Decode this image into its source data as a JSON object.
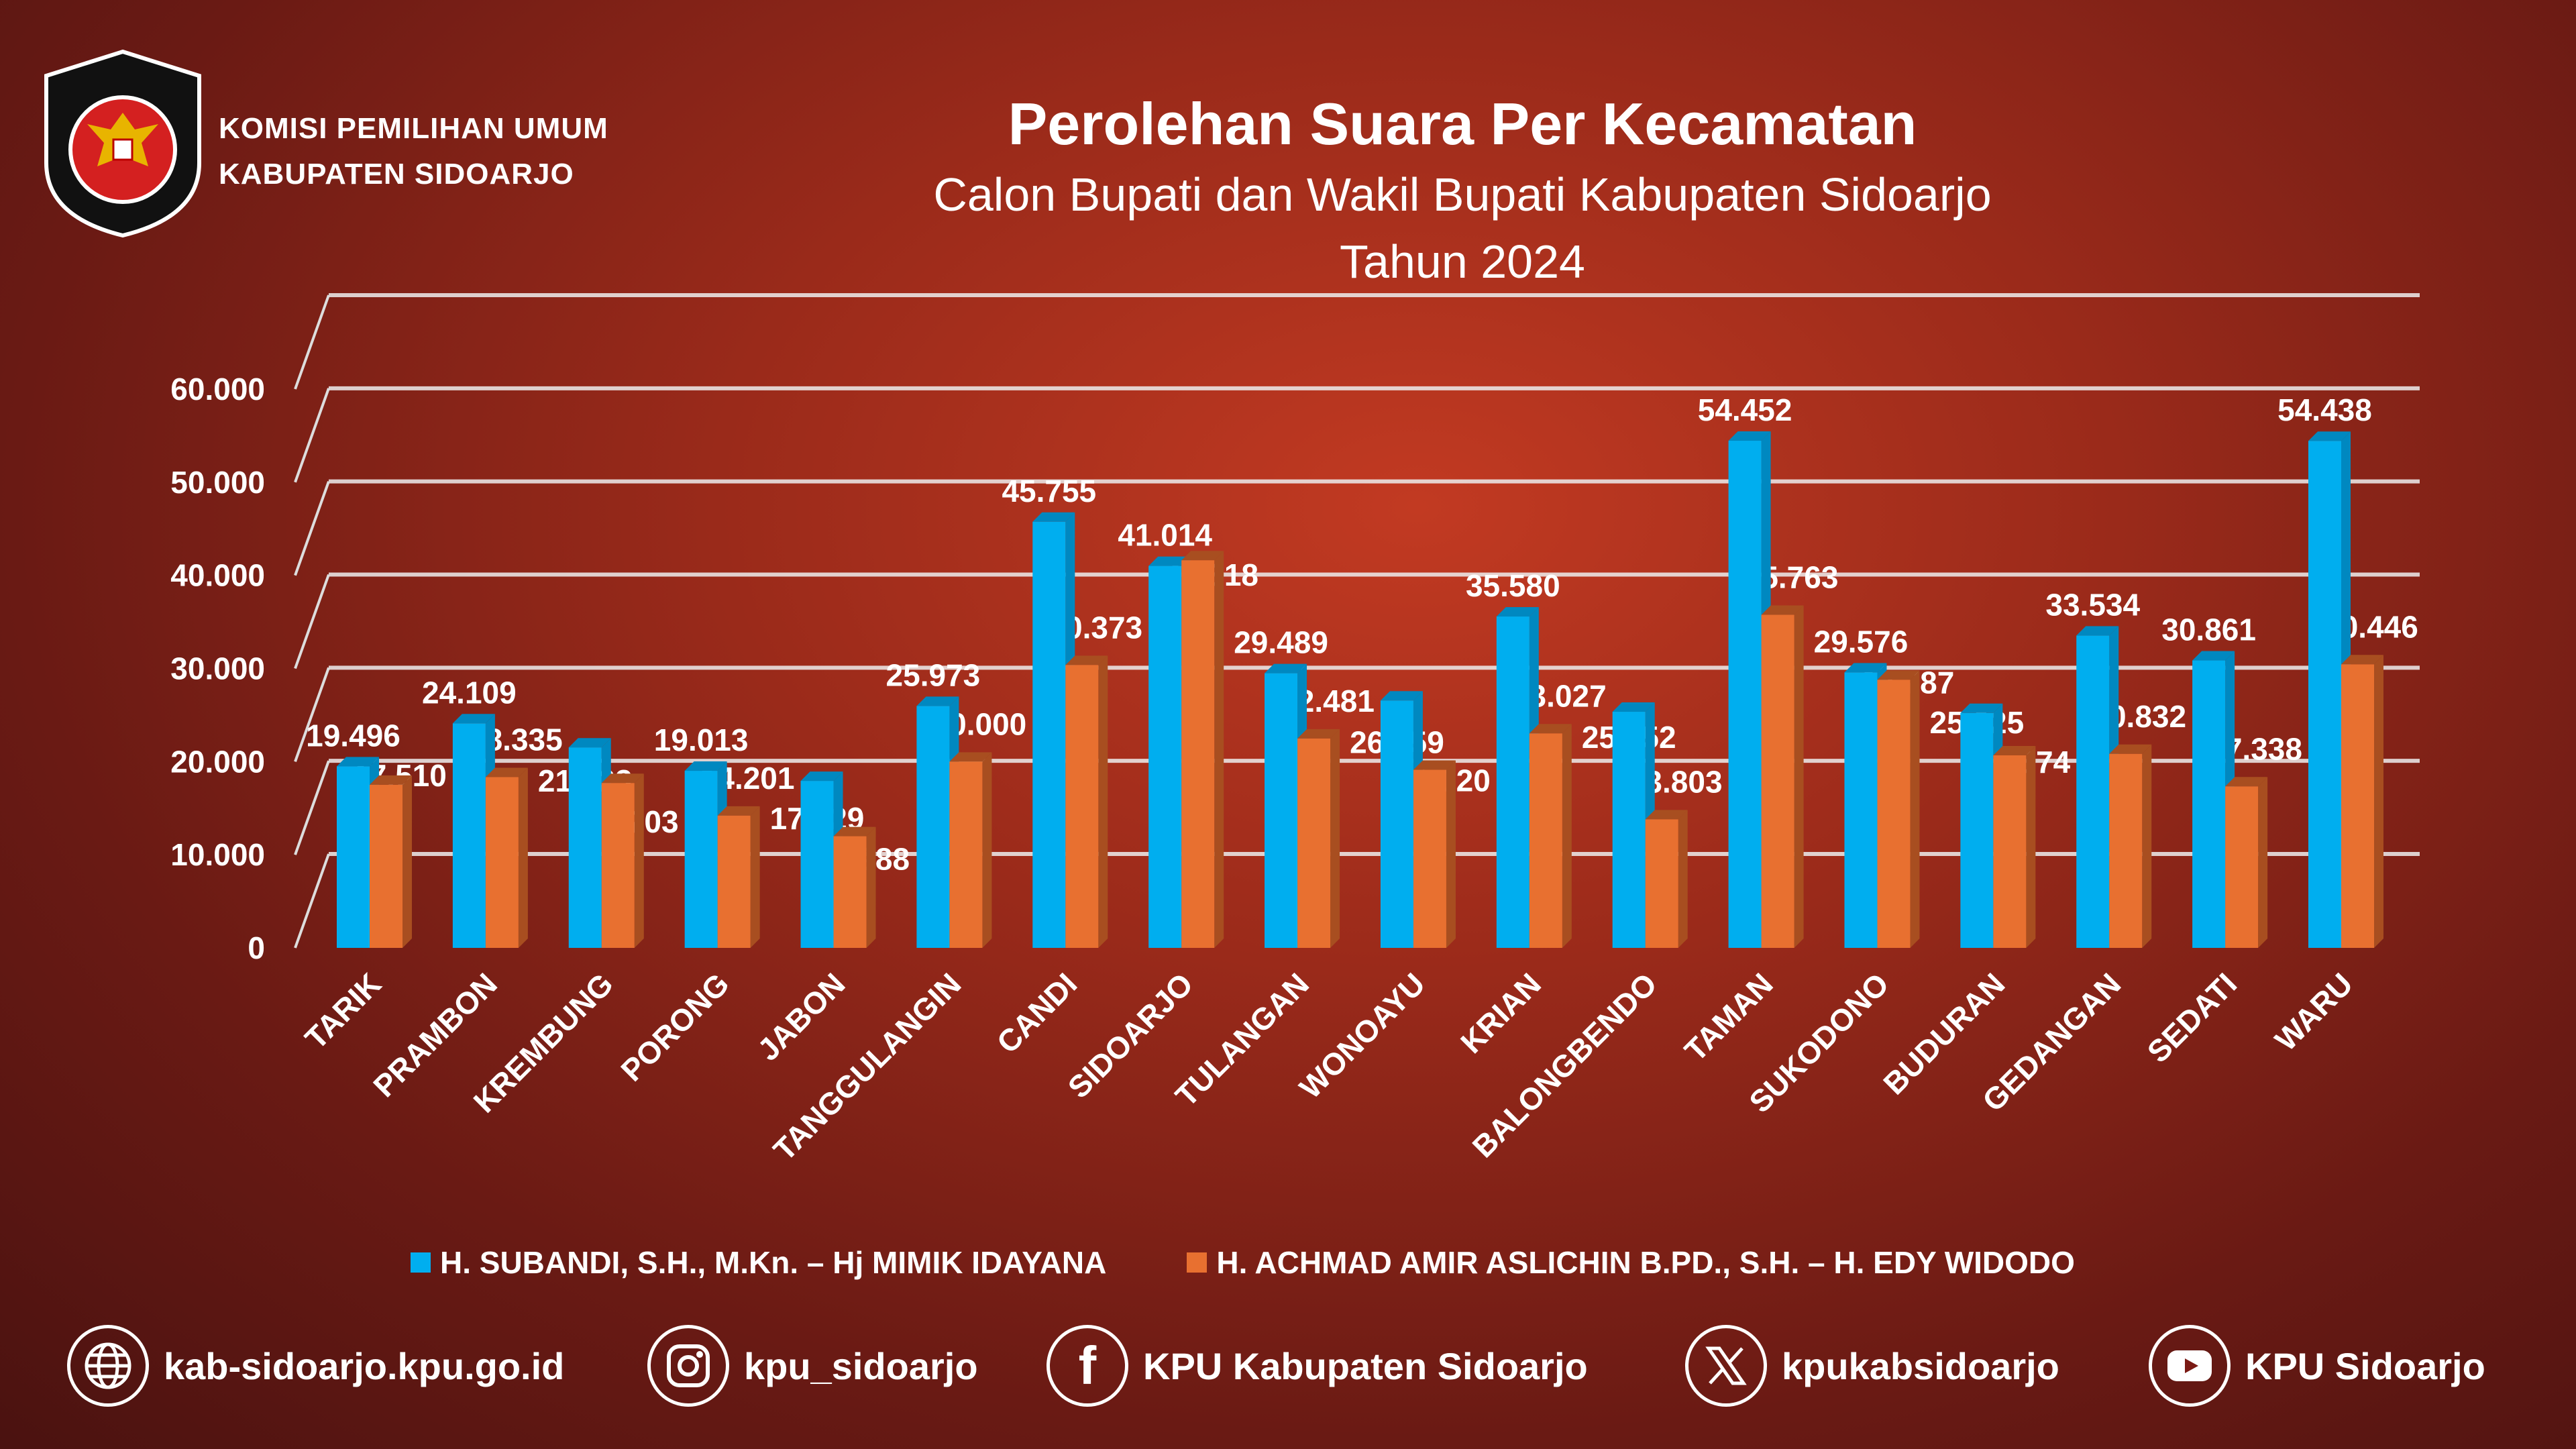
{
  "header": {
    "logo_text_top": "KOMISI",
    "logo_text_bottom": "PEMILIHAN UMUM",
    "org_line1": "KOMISI PEMILIHAN UMUM",
    "org_line2": "KABUPATEN SIDOARJO"
  },
  "chart_data": {
    "type": "bar",
    "title": "Perolehan Suara Per Kecamatan",
    "subtitle": "Calon Bupati dan Wakil Bupati Kabupaten Sidoarjo",
    "subtitle2": "Tahun 2024",
    "xlabel": "",
    "ylabel": "",
    "ylim": [
      0,
      60000
    ],
    "yticks": [
      0,
      10000,
      20000,
      30000,
      40000,
      50000,
      60000
    ],
    "ytick_labels": [
      "0",
      "10.000",
      "20.000",
      "30.000",
      "40.000",
      "50.000",
      "60.000"
    ],
    "grid": true,
    "legend_position": "bottom",
    "categories": [
      "TARIK",
      "PRAMBON",
      "KREMBUNG",
      "PORONG",
      "JABON",
      "TANGGULANGIN",
      "CANDI",
      "SIDOARJO",
      "TULANGAN",
      "WONOAYU",
      "KRIAN",
      "BALONGBENDO",
      "TAMAN",
      "SUKODONO",
      "BUDURAN",
      "GEDANGAN",
      "SEDATI",
      "WARU"
    ],
    "series": [
      {
        "name": "H. SUBANDI, S.H., M.Kn. – Hj MIMIK IDAYANA",
        "color": "#00aeef",
        "values": [
          19496,
          24109,
          21523,
          19013,
          17929,
          25973,
          45755,
          41014,
          29489,
          26559,
          35580,
          25352,
          54452,
          29576,
          25225,
          33534,
          30861,
          54438
        ],
        "labels": [
          "19.496",
          "24.109",
          "21.523",
          "19.013",
          "17.929",
          "25.973",
          "45.755",
          "41.014",
          "29.489",
          "26.559",
          "35.580",
          "25.352",
          "54.452",
          "29.576",
          "25.225",
          "33.534",
          "30.861",
          "54.438"
        ]
      },
      {
        "name": "H. ACHMAD AMIR ASLICHIN B.PD., S.H. – H. EDY WIDODO",
        "color": "#e87030",
        "values": [
          17510,
          18335,
          17703,
          14201,
          11988,
          20000,
          30373,
          41618,
          22481,
          19120,
          23027,
          13803,
          35763,
          28787,
          20674,
          20832,
          17338,
          30446
        ],
        "labels": [
          "17.510",
          "18.335",
          "17.703",
          "14.201",
          "11.988",
          "20.000",
          "30.373",
          "41.618",
          "22.481",
          "19.120",
          "23.027",
          "13.803",
          "35.763",
          "28.787",
          "20.674",
          "20.832",
          "17.338",
          "30.446"
        ]
      }
    ]
  },
  "footer": {
    "website": "kab-sidoarjo.kpu.go.id",
    "instagram": "kpu_sidoarjo",
    "facebook": "KPU Kabupaten Sidoarjo",
    "x": "kpukabsidoarjo",
    "youtube": "KPU Sidoarjo"
  }
}
